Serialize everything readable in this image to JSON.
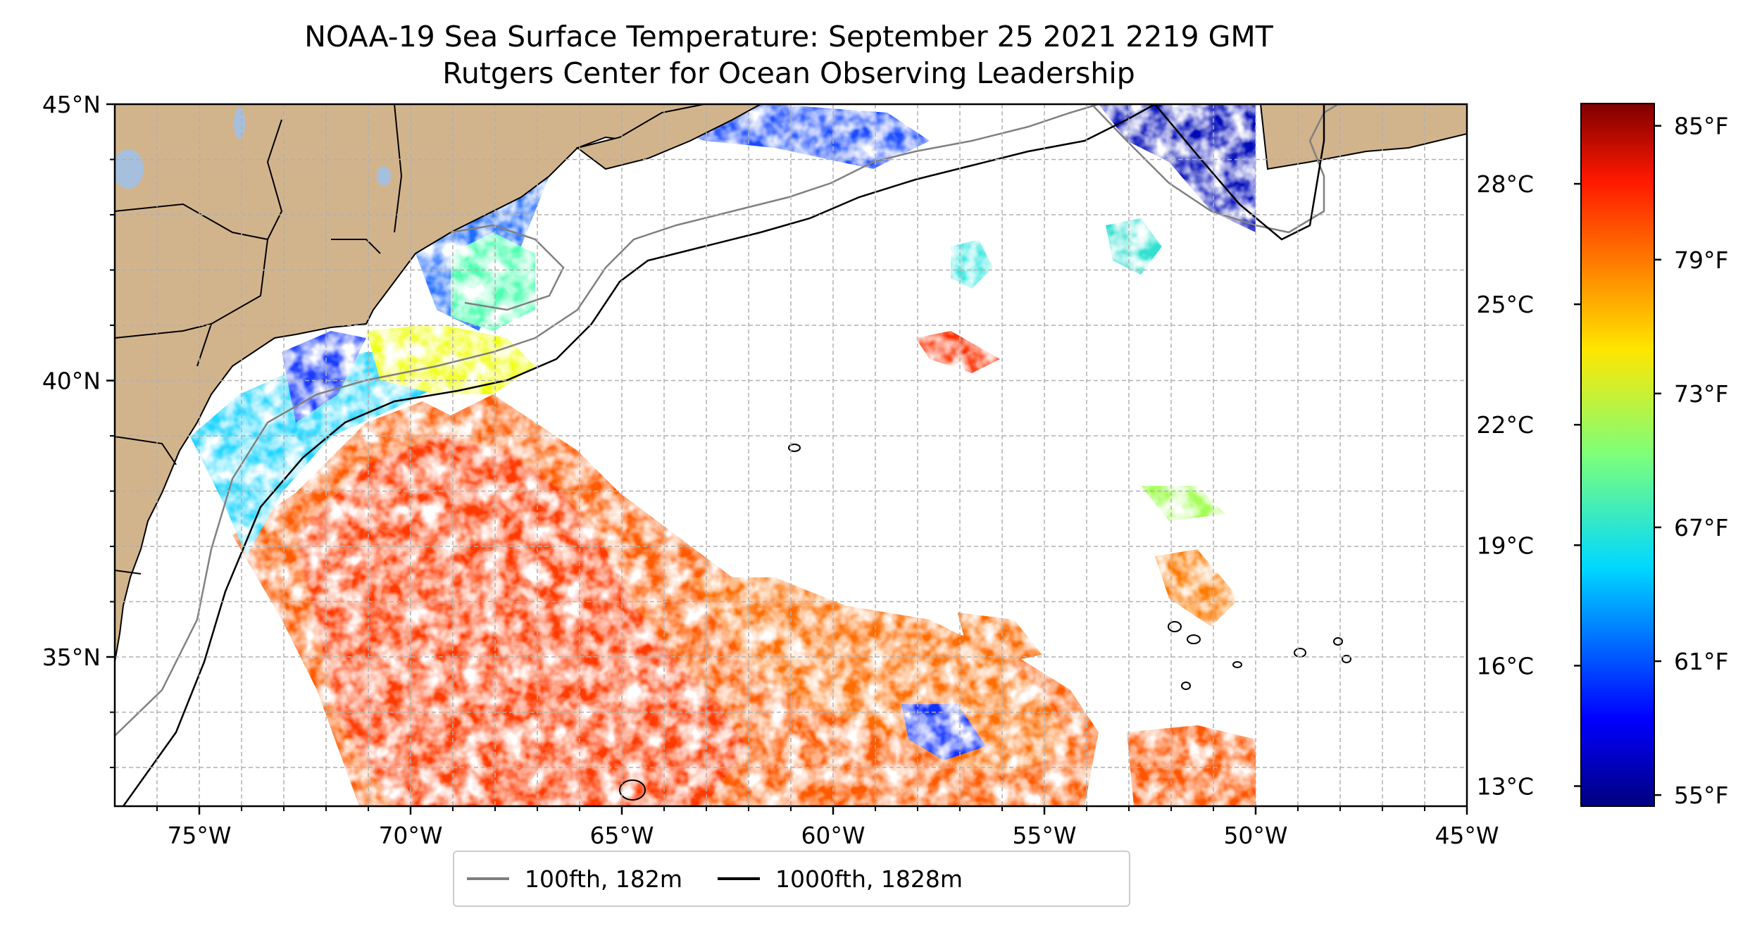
{
  "title": {
    "line1": "NOAA-19 Sea Surface Temperature: September 25 2021 2219 GMT",
    "line2": "Rutgers Center for Ocean Observing Leadership"
  },
  "map": {
    "lon_range": [
      -77,
      -45
    ],
    "lat_range": [
      32.3,
      45
    ],
    "x_ticks": [
      "75°W",
      "70°W",
      "65°W",
      "60°W",
      "55°W",
      "50°W",
      "45°W"
    ],
    "y_ticks": [
      "45°N",
      "40°N",
      "35°N"
    ],
    "land_color": "#d2b48c",
    "lake_color": "#a5bfdd",
    "gridlines": true,
    "data_coverage_east_limit": "50°W"
  },
  "colorbar": {
    "colormap": "jet",
    "celsius_ticks": [
      "28°C",
      "25°C",
      "22°C",
      "19°C",
      "16°C",
      "13°C"
    ],
    "fahrenheit_ticks": [
      "85°F",
      "79°F",
      "73°F",
      "67°F",
      "61°F",
      "55°F"
    ],
    "range_f": [
      54.5,
      86
    ]
  },
  "legend": {
    "placement": "bottom-center",
    "items": [
      {
        "label": "100fth, 182m",
        "color": "#808080"
      },
      {
        "label": "1000fth, 1828m",
        "color": "#000000"
      }
    ]
  }
}
